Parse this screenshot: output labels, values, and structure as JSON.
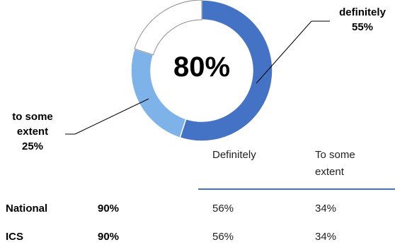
{
  "chart_data": {
    "type": "donut",
    "center_label": "80%",
    "segments": [
      {
        "label": "definitely",
        "value": 55,
        "value_label": "55%",
        "color": "#4472c4"
      },
      {
        "label": "to some extent",
        "value": 25,
        "value_label": "25%",
        "color": "#7db3e8"
      },
      {
        "label": "",
        "value": 20,
        "color": "#ffffff"
      }
    ],
    "table": {
      "columns": [
        "",
        "",
        "Definitely",
        "To some extent"
      ],
      "rows": [
        {
          "name": "National",
          "total": "90%",
          "definitely": "56%",
          "some_extent": "34%"
        },
        {
          "name": "ICS",
          "total": "90%",
          "definitely": "56%",
          "some_extent": "34%"
        }
      ]
    }
  },
  "callouts": {
    "definitely": {
      "line1": "definitely",
      "line2": "55%"
    },
    "some_extent": {
      "line1": "to some",
      "line2": "extent",
      "line3": "25%"
    }
  },
  "colors": {
    "dark_segment": "#4472c4",
    "light_segment": "#7db3e8",
    "remainder_stroke": "#8c8c8c",
    "table_rule": "#4472c4"
  }
}
